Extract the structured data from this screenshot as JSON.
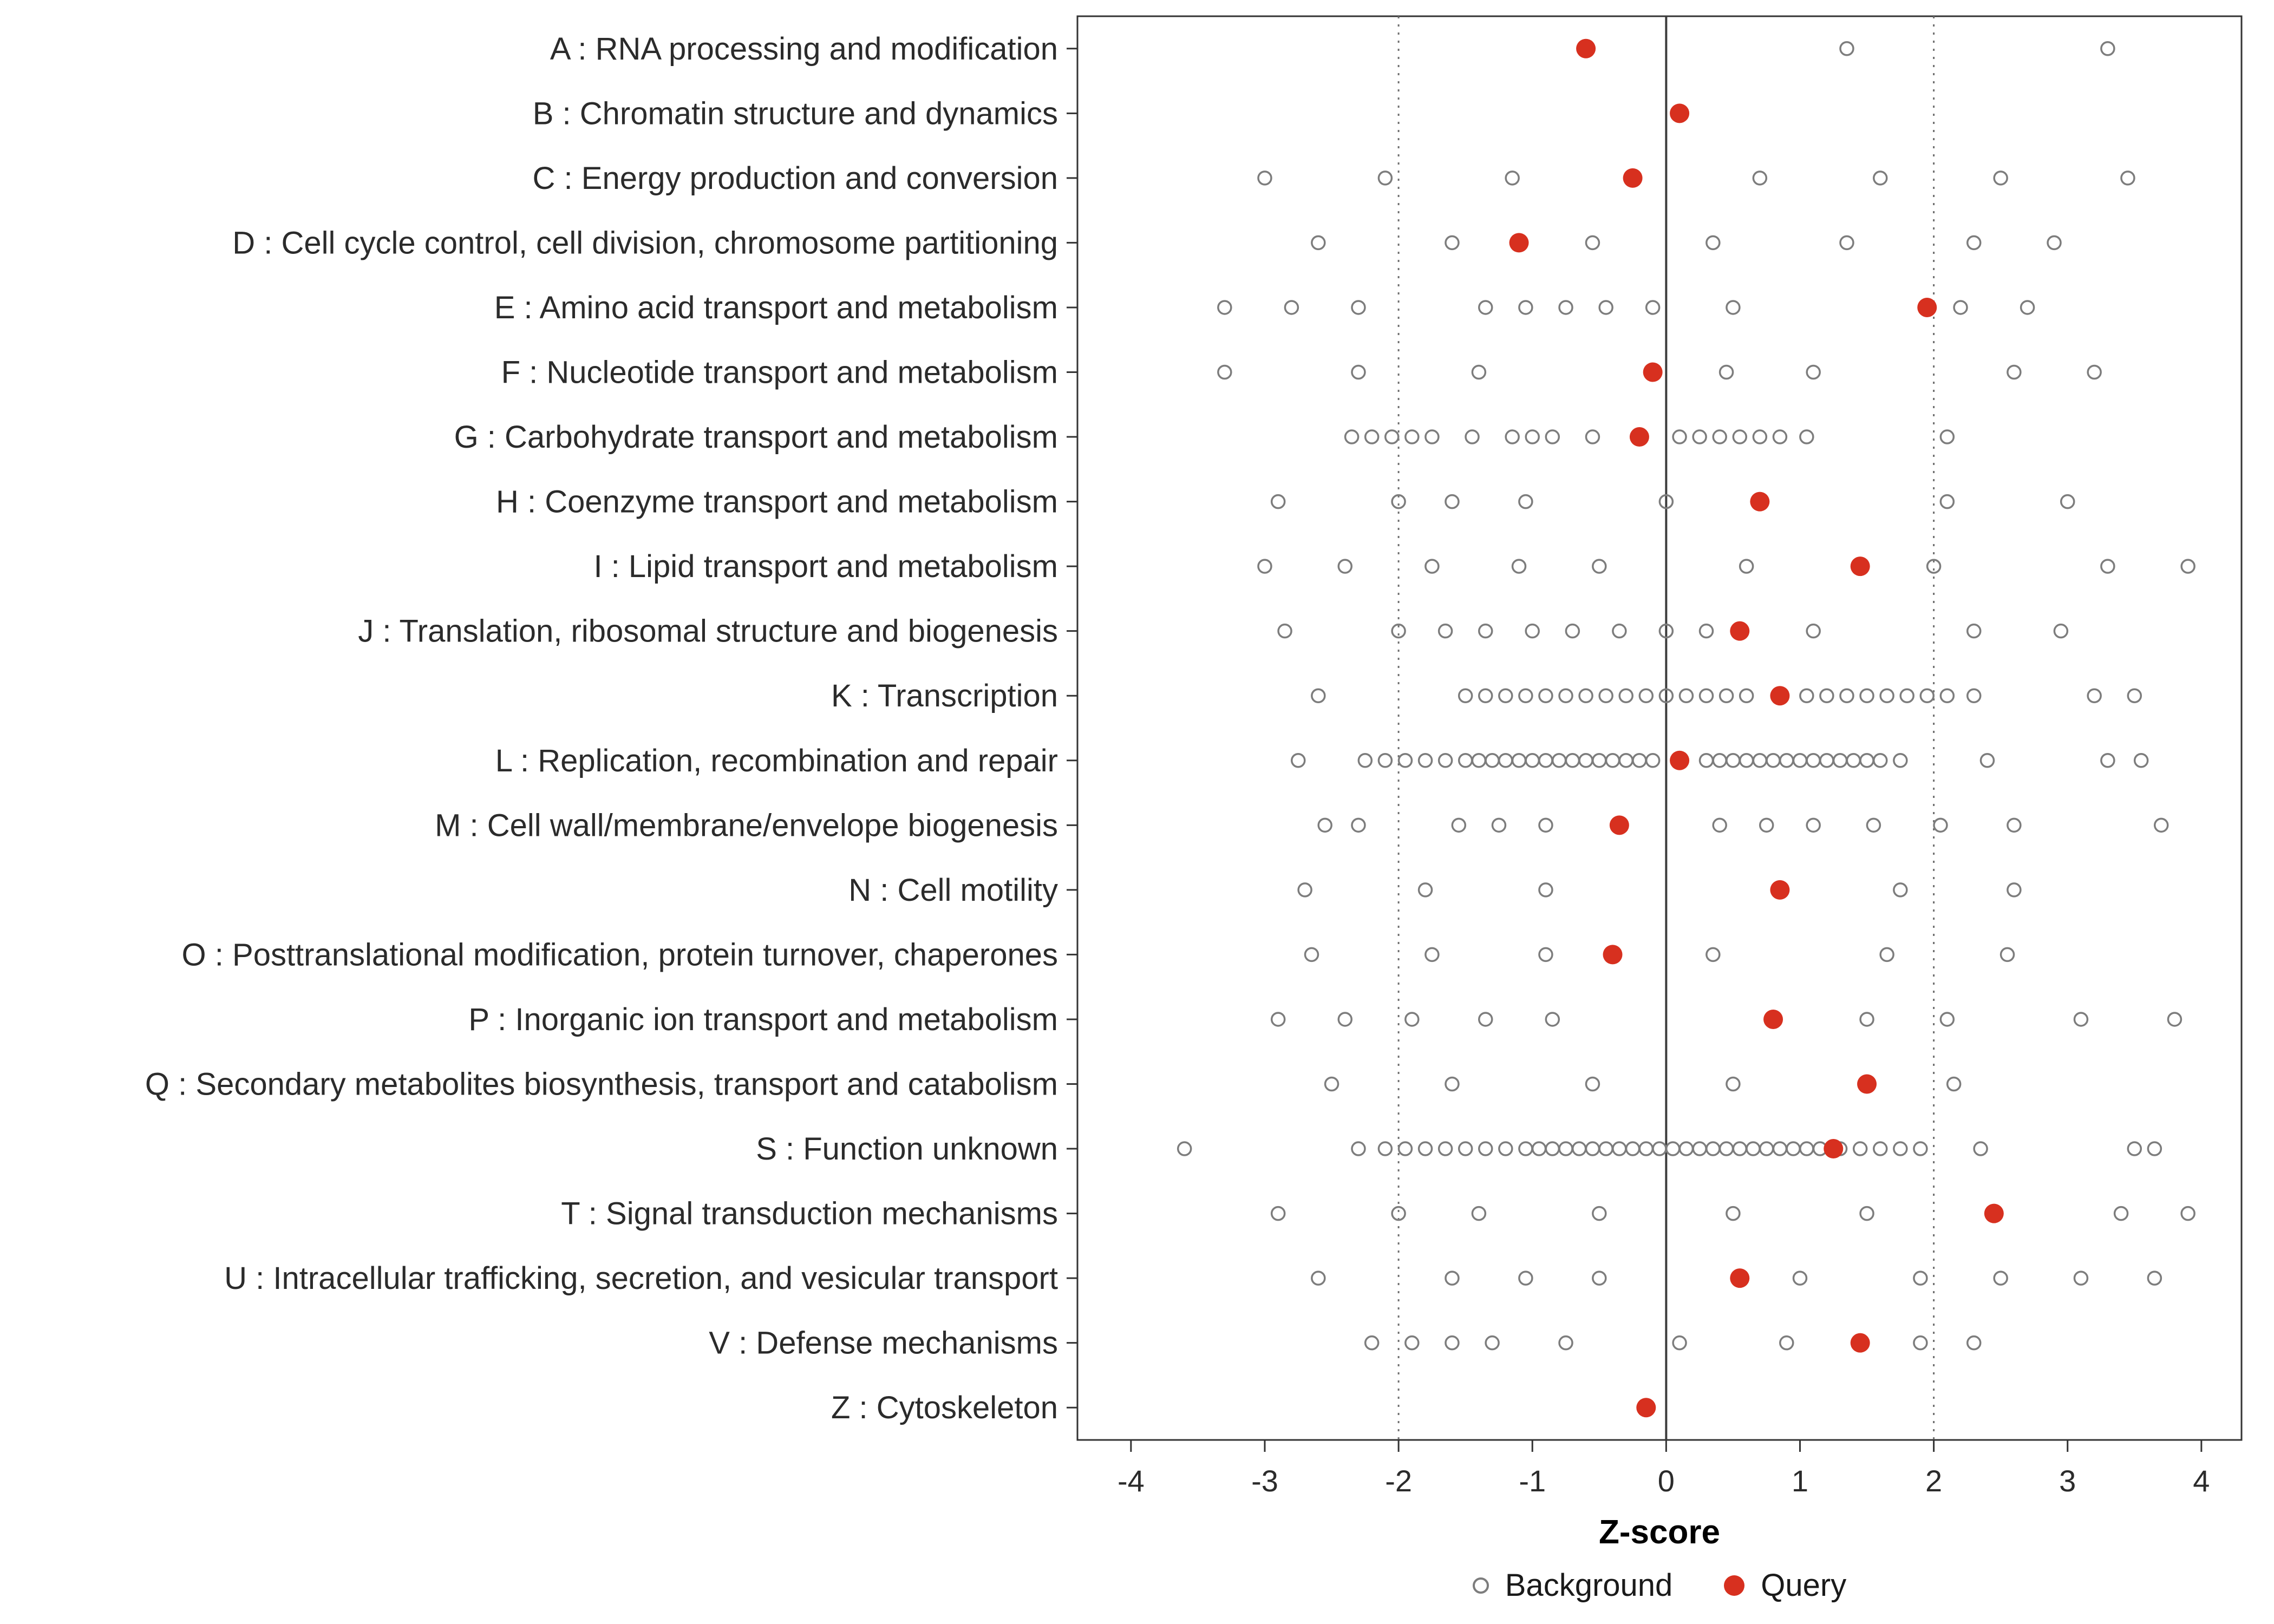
{
  "figure": {
    "xlabel": "Z-score",
    "legend": [
      {
        "label": "Background",
        "marker": "open-circle"
      },
      {
        "label": "Query",
        "marker": "filled-circle"
      }
    ]
  },
  "chart_data": {
    "type": "scatter",
    "title": "",
    "xlabel": "Z-score",
    "ylabel": "",
    "xlim": [
      -4.4,
      4.3
    ],
    "xticks": [
      -4,
      -3,
      -2,
      -1,
      0,
      1,
      2,
      3,
      4
    ],
    "grid": false,
    "legend_position": "bottom",
    "reference_lines": {
      "solid": [
        0
      ],
      "dotted": [
        -2,
        2
      ]
    },
    "colors": {
      "background": "#7d7d7d",
      "query": "#D7301F",
      "panel_border": "#333333",
      "ref_solid": "#3c3c3c",
      "ref_dotted": "#6e6e6e",
      "axis_text": "#2b2b2b"
    },
    "legend": [
      {
        "label": "Background"
      },
      {
        "label": "Query"
      }
    ],
    "categories": [
      "A : RNA processing and modification",
      "B : Chromatin structure and dynamics",
      "C : Energy production and conversion",
      "D : Cell cycle control, cell division, chromosome partitioning",
      "E : Amino acid transport and metabolism",
      "F : Nucleotide transport and metabolism",
      "G : Carbohydrate transport and metabolism",
      "H : Coenzyme transport and metabolism",
      "I : Lipid transport and metabolism",
      "J : Translation, ribosomal structure and biogenesis",
      "K : Transcription",
      "L : Replication, recombination and repair",
      "M : Cell wall/membrane/envelope biogenesis",
      "N : Cell motility",
      "O : Posttranslational modification, protein turnover, chaperones",
      "P : Inorganic ion transport and metabolism",
      "Q : Secondary metabolites biosynthesis, transport and catabolism",
      "S : Function unknown",
      "T : Signal transduction mechanisms",
      "U : Intracellular trafficking, secretion, and vesicular transport",
      "V : Defense mechanisms",
      "Z : Cytoskeleton"
    ],
    "series": {
      "background": [
        [
          1.35,
          3.3
        ],
        [],
        [
          -3.0,
          -2.1,
          -1.15,
          0.7,
          1.6,
          2.5,
          3.45
        ],
        [
          -2.6,
          -1.6,
          -0.55,
          0.35,
          1.35,
          2.3,
          2.9
        ],
        [
          -3.3,
          -2.8,
          -2.3,
          -1.35,
          -1.05,
          -0.75,
          -0.45,
          -0.1,
          0.5,
          2.2,
          2.7
        ],
        [
          -3.3,
          -2.3,
          -1.4,
          0.45,
          1.1,
          2.6,
          3.2
        ],
        [
          -2.35,
          -2.2,
          -2.05,
          -1.9,
          -1.75,
          -1.45,
          -1.15,
          -1.0,
          -0.85,
          -0.55,
          0.1,
          0.25,
          0.4,
          0.55,
          0.7,
          0.85,
          1.05,
          2.1
        ],
        [
          -2.9,
          -2.0,
          -1.6,
          -1.05,
          0.0,
          2.1,
          3.0
        ],
        [
          -3.0,
          -2.4,
          -1.75,
          -1.1,
          -0.5,
          0.6,
          2.0,
          3.3,
          3.9
        ],
        [
          -2.85,
          -2.0,
          -1.65,
          -1.35,
          -1.0,
          -0.7,
          -0.35,
          0.0,
          0.3,
          1.1,
          2.3,
          2.95
        ],
        [
          -2.6,
          -1.5,
          -1.35,
          -1.2,
          -1.05,
          -0.9,
          -0.75,
          -0.6,
          -0.45,
          -0.3,
          -0.15,
          0.0,
          0.15,
          0.3,
          0.45,
          0.6,
          1.05,
          1.2,
          1.35,
          1.5,
          1.65,
          1.8,
          1.95,
          2.1,
          2.3,
          3.2,
          3.5
        ],
        [
          -2.75,
          -2.25,
          -2.1,
          -1.95,
          -1.8,
          -1.65,
          -1.5,
          -1.4,
          -1.3,
          -1.2,
          -1.1,
          -1.0,
          -0.9,
          -0.8,
          -0.7,
          -0.6,
          -0.5,
          -0.4,
          -0.3,
          -0.2,
          -0.1,
          0.3,
          0.4,
          0.5,
          0.6,
          0.7,
          0.8,
          0.9,
          1.0,
          1.1,
          1.2,
          1.3,
          1.4,
          1.5,
          1.6,
          1.75,
          2.4,
          3.3,
          3.55
        ],
        [
          -2.55,
          -2.3,
          -1.55,
          -1.25,
          -0.9,
          0.4,
          0.75,
          1.1,
          1.55,
          2.05,
          2.6,
          3.7
        ],
        [
          -2.7,
          -1.8,
          -0.9,
          1.75,
          2.6
        ],
        [
          -2.65,
          -1.75,
          -0.9,
          0.35,
          1.65,
          2.55
        ],
        [
          -2.9,
          -2.4,
          -1.9,
          -1.35,
          -0.85,
          1.5,
          2.1,
          3.1,
          3.8
        ],
        [
          -2.5,
          -1.6,
          -0.55,
          0.5,
          2.15
        ],
        [
          -3.6,
          -2.3,
          -2.1,
          -1.95,
          -1.8,
          -1.65,
          -1.5,
          -1.35,
          -1.2,
          -1.05,
          -0.95,
          -0.85,
          -0.75,
          -0.65,
          -0.55,
          -0.45,
          -0.35,
          -0.25,
          -0.15,
          -0.05,
          0.05,
          0.15,
          0.25,
          0.35,
          0.45,
          0.55,
          0.65,
          0.75,
          0.85,
          0.95,
          1.05,
          1.15,
          1.3,
          1.45,
          1.6,
          1.75,
          1.9,
          2.35,
          3.5,
          3.65
        ],
        [
          -2.9,
          -2.0,
          -1.4,
          -0.5,
          0.5,
          1.5,
          3.4,
          3.9
        ],
        [
          -2.6,
          -1.6,
          -1.05,
          -0.5,
          1.0,
          1.9,
          2.5,
          3.1,
          3.65
        ],
        [
          -2.2,
          -1.9,
          -1.6,
          -1.3,
          -0.75,
          0.1,
          0.9,
          1.9,
          2.3
        ],
        []
      ],
      "query": [
        [
          -0.6
        ],
        [
          0.1
        ],
        [
          -0.25
        ],
        [
          -1.1
        ],
        [
          1.95
        ],
        [
          -0.1
        ],
        [
          -0.2
        ],
        [
          0.7
        ],
        [
          1.45
        ],
        [
          0.55
        ],
        [
          0.85
        ],
        [
          0.1
        ],
        [
          -0.35
        ],
        [
          0.85
        ],
        [
          -0.4
        ],
        [
          0.8
        ],
        [
          1.5
        ],
        [
          1.25
        ],
        [
          2.45
        ],
        [
          0.55
        ],
        [
          1.45
        ],
        [
          -0.15
        ]
      ]
    }
  }
}
